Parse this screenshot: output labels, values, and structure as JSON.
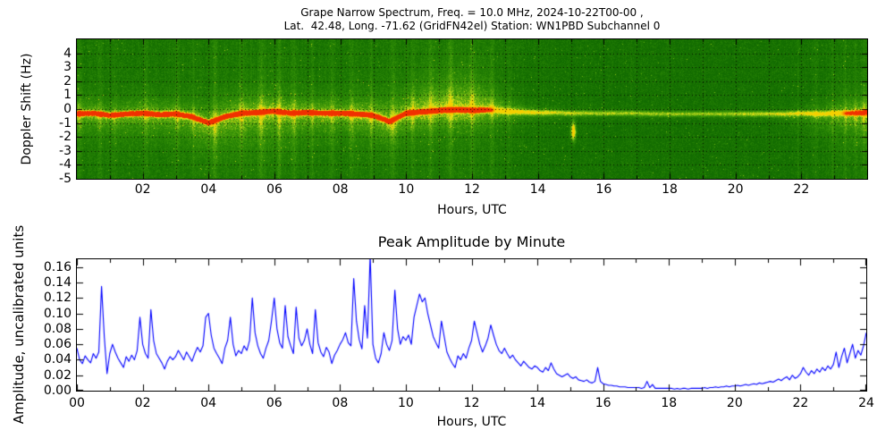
{
  "figure": {
    "background": "#ffffff",
    "frame_color": "#000000"
  },
  "chart_data": [
    {
      "type": "heatmap",
      "role": "doppler-spectrogram",
      "title": "Grape Narrow Spectrum, Freq. = 10.0 MHz, 2024-10-22T00-00 ,\nLat.  42.48, Long. -71.62 (GridFN42el) Station: WN1PBD Subchannel 0",
      "xlabel": "Hours, UTC",
      "ylabel": "Doppler Shift (Hz)",
      "xlim": [
        0,
        24
      ],
      "ylim": [
        -5,
        5
      ],
      "xticks_major": [
        2,
        4,
        6,
        8,
        10,
        12,
        14,
        16,
        18,
        20,
        22
      ],
      "xtick_labels": [
        "02",
        "04",
        "06",
        "08",
        "10",
        "12",
        "14",
        "16",
        "18",
        "20",
        "22"
      ],
      "xtick_minor_step": 1,
      "yticks": [
        4,
        3,
        2,
        1,
        0,
        -1,
        -2,
        -3,
        -4,
        -5
      ],
      "ytick_labels": [
        "4",
        "3",
        "2",
        "1",
        "0",
        "-1",
        "-2",
        "-3",
        "-4",
        "-5"
      ],
      "grid": "dotted black every 1 hour and 1 Hz",
      "colormap_stops": [
        [
          0.0,
          "#0a5f00"
        ],
        [
          0.25,
          "#146e01"
        ],
        [
          0.45,
          "#2f8c06"
        ],
        [
          0.6,
          "#58a80d"
        ],
        [
          0.72,
          "#96c615"
        ],
        [
          0.82,
          "#d7e41c"
        ],
        [
          0.9,
          "#f5d000"
        ],
        [
          0.95,
          "#f78c00"
        ],
        [
          1.0,
          "#f03000"
        ]
      ],
      "model": {
        "center_trace_hz": {
          "dt": 0.5,
          "values": [
            -0.35,
            -0.3,
            -0.45,
            -0.35,
            -0.3,
            -0.4,
            -0.35,
            -0.55,
            -1.0,
            -0.55,
            -0.3,
            -0.25,
            -0.15,
            -0.3,
            -0.25,
            -0.3,
            -0.3,
            -0.35,
            -0.45,
            -0.9,
            -0.3,
            -0.2,
            -0.1,
            -0.05,
            -0.1,
            -0.05,
            -0.15,
            -0.2,
            -0.25,
            -0.25,
            -0.3,
            -0.3,
            -0.3,
            -0.3,
            -0.3,
            -0.35,
            -0.35,
            -0.35,
            -0.35,
            -0.35,
            -0.35,
            -0.35,
            -0.35,
            -0.35,
            -0.3,
            -0.35,
            -0.3,
            -0.3,
            -0.25
          ]
        },
        "brightness": {
          "dt": 1,
          "values": [
            0.6,
            0.55,
            0.6,
            0.6,
            0.65,
            0.65,
            0.65,
            0.6,
            0.6,
            0.65,
            0.7,
            0.75,
            0.75,
            0.55,
            0.35,
            0.25,
            0.2,
            0.2,
            0.18,
            0.18,
            0.2,
            0.25,
            0.35,
            0.5,
            0.65
          ]
        },
        "spread_up_hz": {
          "dt": 1,
          "values": [
            1.4,
            1.2,
            1.5,
            1.3,
            1.5,
            1.8,
            2.0,
            1.6,
            1.5,
            1.8,
            2.2,
            2.8,
            3.0,
            1.2,
            0.6,
            0.5,
            0.4,
            0.35,
            0.3,
            0.3,
            0.35,
            0.4,
            0.6,
            1.2,
            1.8
          ]
        },
        "spread_dn_hz": {
          "dt": 1,
          "values": [
            1.5,
            1.6,
            1.8,
            1.8,
            2.2,
            2.5,
            2.5,
            2.0,
            1.8,
            2.0,
            1.8,
            1.6,
            1.5,
            1.0,
            0.7,
            0.5,
            0.4,
            0.4,
            0.35,
            0.35,
            0.4,
            0.5,
            1.0,
            1.8,
            2.2
          ]
        },
        "red_trace": {
          "full_until_hour": 12.2,
          "fade_until_hour": 12.7,
          "returns_from_hour": 23.2,
          "return_level": 0.8
        },
        "streaks": [
          [
            0.08,
            0.04,
            0.6
          ],
          [
            0.7,
            0.05,
            0.5
          ],
          [
            1.15,
            0.04,
            0.45
          ],
          [
            2.1,
            0.05,
            0.5
          ],
          [
            3.05,
            0.06,
            0.55
          ],
          [
            3.55,
            0.04,
            0.5
          ],
          [
            4.2,
            0.05,
            0.7
          ],
          [
            5.0,
            0.05,
            0.6
          ],
          [
            5.6,
            0.06,
            0.7
          ],
          [
            6.15,
            0.05,
            0.65
          ],
          [
            6.6,
            0.05,
            0.6
          ],
          [
            7.15,
            0.04,
            0.5
          ],
          [
            7.75,
            0.05,
            0.55
          ],
          [
            8.35,
            0.05,
            0.6
          ],
          [
            8.95,
            0.04,
            0.55
          ],
          [
            9.6,
            0.05,
            0.6
          ],
          [
            10.2,
            0.04,
            0.55
          ],
          [
            10.75,
            0.05,
            0.6
          ],
          [
            11.35,
            0.06,
            0.7
          ],
          [
            12.0,
            0.05,
            0.6
          ],
          [
            12.6,
            0.05,
            0.55
          ],
          [
            13.15,
            0.04,
            0.45
          ],
          [
            16.85,
            0.02,
            0.3
          ],
          [
            17.95,
            0.02,
            0.25
          ],
          [
            21.9,
            0.03,
            0.35
          ],
          [
            22.45,
            0.03,
            0.4
          ],
          [
            22.95,
            0.03,
            0.45
          ],
          [
            23.35,
            0.03,
            0.5
          ],
          [
            23.65,
            0.03,
            0.55
          ],
          [
            23.9,
            0.03,
            0.6
          ]
        ],
        "blobs": [
          [
            15.08,
            -1.6,
            0.05,
            0.45,
            0.9
          ]
        ]
      },
      "description": "Red carrier trace near -0.3 Hz with yellow sideband fuzz from 00:00 to ~12:30 UTC; quiet dark-green band 14:00-21:30 with a thin yellow line; activity and orange-red trace return toward 24:00."
    },
    {
      "type": "line",
      "title": "Peak Amplitude by Minute",
      "xlabel": "Hours, UTC",
      "ylabel": "Amplitude, uncalibrated units",
      "color": "#0000ff",
      "xlim": [
        0,
        24
      ],
      "ylim": [
        0,
        0.17
      ],
      "xticks_major": [
        0,
        2,
        4,
        6,
        8,
        10,
        12,
        14,
        16,
        18,
        20,
        22,
        24
      ],
      "xtick_labels": [
        "00",
        "02",
        "04",
        "06",
        "08",
        "10",
        "12",
        "14",
        "16",
        "18",
        "20",
        "22",
        "24"
      ],
      "xtick_minor_step": 1,
      "yticks": [
        0.0,
        0.02,
        0.04,
        0.06,
        0.08,
        0.1,
        0.12,
        0.14,
        0.16
      ],
      "ytick_labels": [
        "0.00",
        "0.02",
        "0.04",
        "0.06",
        "0.08",
        "0.10",
        "0.12",
        "0.14",
        "0.16"
      ],
      "x_start_hours": 0,
      "x_step_hours": 0.0833333,
      "values": [
        0.055,
        0.04,
        0.035,
        0.045,
        0.04,
        0.036,
        0.048,
        0.042,
        0.05,
        0.135,
        0.07,
        0.022,
        0.048,
        0.06,
        0.05,
        0.042,
        0.036,
        0.03,
        0.044,
        0.038,
        0.046,
        0.04,
        0.052,
        0.095,
        0.06,
        0.048,
        0.042,
        0.105,
        0.065,
        0.048,
        0.042,
        0.036,
        0.028,
        0.038,
        0.044,
        0.04,
        0.044,
        0.052,
        0.046,
        0.04,
        0.05,
        0.044,
        0.038,
        0.048,
        0.056,
        0.05,
        0.058,
        0.095,
        0.1,
        0.072,
        0.055,
        0.048,
        0.042,
        0.035,
        0.055,
        0.065,
        0.095,
        0.06,
        0.045,
        0.052,
        0.048,
        0.058,
        0.052,
        0.065,
        0.12,
        0.075,
        0.058,
        0.048,
        0.042,
        0.055,
        0.065,
        0.09,
        0.12,
        0.08,
        0.062,
        0.055,
        0.11,
        0.07,
        0.058,
        0.048,
        0.108,
        0.068,
        0.058,
        0.065,
        0.08,
        0.06,
        0.048,
        0.105,
        0.062,
        0.05,
        0.044,
        0.056,
        0.05,
        0.035,
        0.046,
        0.052,
        0.06,
        0.066,
        0.075,
        0.062,
        0.058,
        0.145,
        0.09,
        0.066,
        0.054,
        0.11,
        0.068,
        0.175,
        0.06,
        0.042,
        0.036,
        0.048,
        0.075,
        0.06,
        0.052,
        0.065,
        0.13,
        0.08,
        0.06,
        0.07,
        0.065,
        0.072,
        0.06,
        0.095,
        0.11,
        0.125,
        0.115,
        0.12,
        0.1,
        0.085,
        0.07,
        0.062,
        0.055,
        0.09,
        0.07,
        0.05,
        0.042,
        0.035,
        0.03,
        0.045,
        0.04,
        0.048,
        0.042,
        0.055,
        0.065,
        0.09,
        0.075,
        0.06,
        0.05,
        0.058,
        0.068,
        0.085,
        0.072,
        0.06,
        0.052,
        0.048,
        0.055,
        0.048,
        0.042,
        0.046,
        0.04,
        0.036,
        0.032,
        0.038,
        0.034,
        0.03,
        0.028,
        0.032,
        0.03,
        0.026,
        0.024,
        0.03,
        0.026,
        0.036,
        0.028,
        0.022,
        0.02,
        0.018,
        0.02,
        0.022,
        0.018,
        0.016,
        0.018,
        0.014,
        0.013,
        0.012,
        0.014,
        0.011,
        0.01,
        0.012,
        0.03,
        0.012,
        0.009,
        0.008,
        0.007,
        0.007,
        0.006,
        0.006,
        0.005,
        0.005,
        0.005,
        0.004,
        0.004,
        0.004,
        0.004,
        0.004,
        0.003,
        0.004,
        0.012,
        0.004,
        0.008,
        0.003,
        0.003,
        0.003,
        0.003,
        0.003,
        0.003,
        0.003,
        0.002,
        0.003,
        0.002,
        0.003,
        0.003,
        0.002,
        0.003,
        0.003,
        0.003,
        0.003,
        0.003,
        0.004,
        0.003,
        0.004,
        0.004,
        0.005,
        0.004,
        0.005,
        0.005,
        0.006,
        0.005,
        0.006,
        0.006,
        0.007,
        0.006,
        0.007,
        0.008,
        0.007,
        0.008,
        0.009,
        0.008,
        0.01,
        0.009,
        0.01,
        0.011,
        0.012,
        0.011,
        0.013,
        0.015,
        0.013,
        0.016,
        0.018,
        0.014,
        0.02,
        0.016,
        0.018,
        0.022,
        0.03,
        0.024,
        0.02,
        0.026,
        0.022,
        0.028,
        0.024,
        0.03,
        0.026,
        0.032,
        0.028,
        0.034,
        0.05,
        0.03,
        0.044,
        0.055,
        0.036,
        0.048,
        0.06,
        0.042,
        0.052,
        0.046,
        0.058,
        0.075
      ]
    }
  ]
}
